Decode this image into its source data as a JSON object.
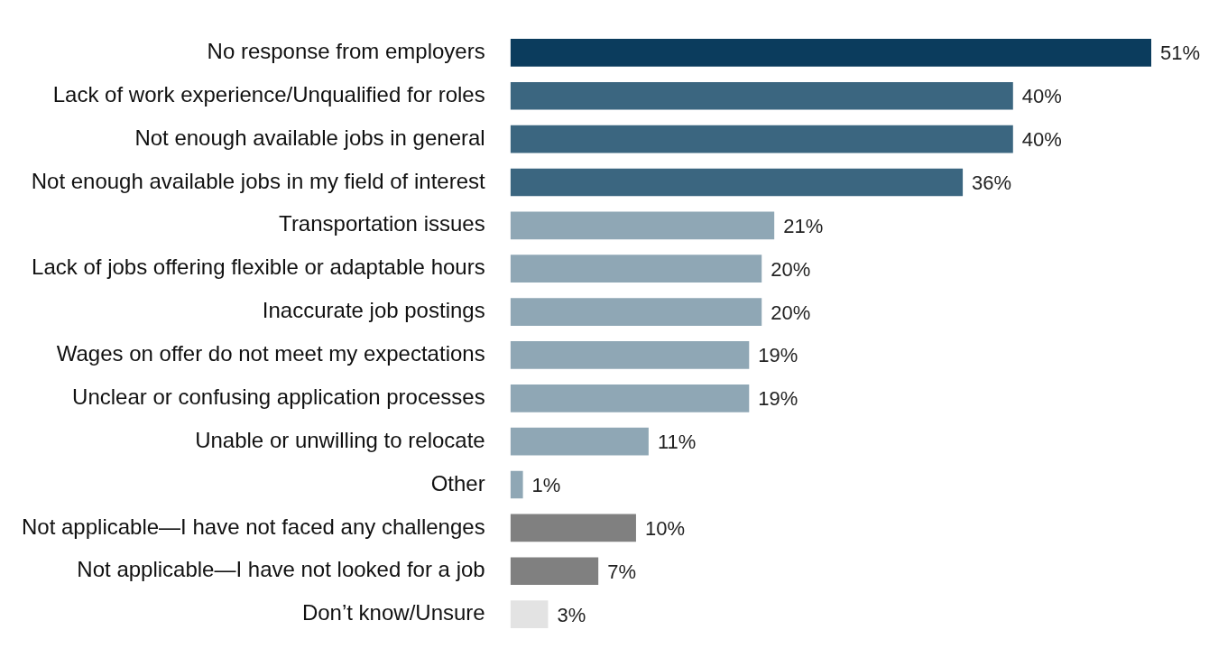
{
  "chart_data": {
    "type": "bar",
    "orientation": "horizontal",
    "tick_labels": "y",
    "categories": [
      "No response from employers",
      "Lack of work experience/Unqualified for roles",
      "Not enough available jobs in general",
      "Not enough available jobs in my field of interest",
      "Transportation issues",
      "Lack of jobs offering flexible or adaptable hours",
      "Inaccurate job postings",
      "Wages on offer do not meet my expectations",
      "Unclear or confusing application processes",
      "Unable or unwilling to relocate",
      "Other",
      "Not applicable—I have not faced any challenges",
      "Not applicable—I have not looked for a job",
      "Don’t know/Unsure"
    ],
    "values": [
      51,
      40,
      40,
      36,
      21,
      20,
      20,
      19,
      19,
      11,
      1,
      10,
      7,
      3
    ],
    "value_labels": [
      "51%",
      "40%",
      "40%",
      "36%",
      "21%",
      "20%",
      "20%",
      "19%",
      "19%",
      "11%",
      "1%",
      "10%",
      "7%",
      "3%"
    ],
    "colors": [
      "#0b3c5d",
      "#3b6680",
      "#3b6680",
      "#3b6680",
      "#8fa7b5",
      "#8fa7b5",
      "#8fa7b5",
      "#8fa7b5",
      "#8fa7b5",
      "#8fa7b5",
      "#8fa7b5",
      "#808080",
      "#808080",
      "#e3e3e3"
    ]
  }
}
